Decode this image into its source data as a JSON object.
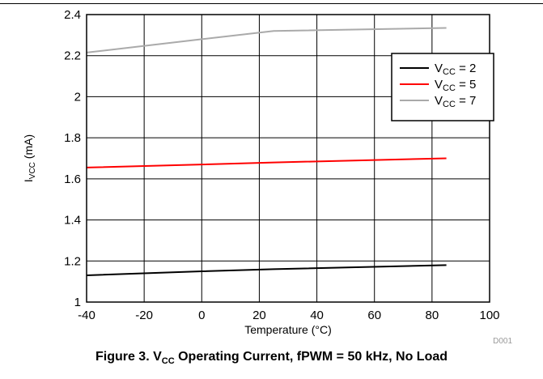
{
  "figure": {
    "id_tag": "D001",
    "caption": {
      "pre": "Figure 3. V",
      "sub": "CC",
      "post": " Operating Current, fPWM = 50 kHz, No Load"
    }
  },
  "chart_data": {
    "type": "line",
    "xlabel": "Temperature (°C)",
    "ylabel": {
      "main": "I",
      "sub": "VCC",
      "rest": " (mA)"
    },
    "xlim": [
      -40,
      100
    ],
    "ylim": [
      1,
      2.4
    ],
    "xticks": [
      -40,
      -20,
      0,
      20,
      40,
      60,
      80,
      100
    ],
    "yticks": [
      1,
      1.2,
      1.4,
      1.6,
      1.8,
      2,
      2.2,
      2.4
    ],
    "xtick_labels": [
      "-40",
      "-20",
      "0",
      "20",
      "40",
      "60",
      "80",
      "100"
    ],
    "ytick_labels": [
      "1",
      "1.2",
      "1.4",
      "1.6",
      "1.8",
      "2",
      "2.2",
      "2.4"
    ],
    "grid": true,
    "legend": "top-right",
    "series": [
      {
        "name": "2",
        "label_prefix": "V",
        "label_sub": "CC",
        "label_suffix": " = 2",
        "color": "#000000",
        "x": [
          -40,
          0,
          25,
          85
        ],
        "y": [
          1.13,
          1.15,
          1.16,
          1.18
        ]
      },
      {
        "name": "5",
        "label_prefix": "V",
        "label_sub": "CC",
        "label_suffix": " = 5",
        "color": "#ff0000",
        "x": [
          -40,
          0,
          25,
          85
        ],
        "y": [
          1.655,
          1.67,
          1.68,
          1.7
        ]
      },
      {
        "name": "7",
        "label_prefix": "V",
        "label_sub": "CC",
        "label_suffix": " = 7",
        "color": "#aaaaaa",
        "x": [
          -40,
          0,
          25,
          85
        ],
        "y": [
          2.215,
          2.28,
          2.32,
          2.335
        ]
      }
    ]
  }
}
